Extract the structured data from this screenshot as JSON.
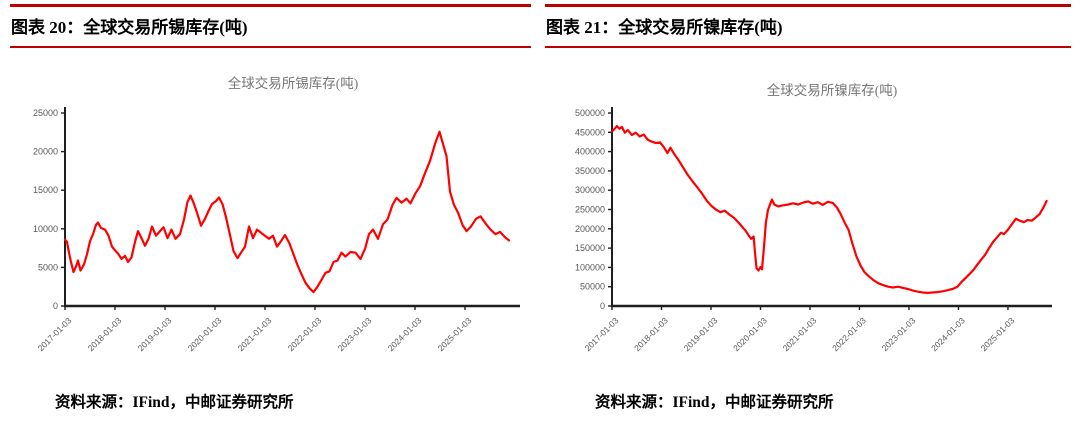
{
  "style": {
    "accent_rule_color": "#c00000",
    "series_line_color": "#ff0000",
    "axis_color": "#1f1f1f",
    "tick_label_color": "#595959",
    "chart_title_color": "#767676"
  },
  "figures": [
    {
      "header_label": "图表 20：全球交易所锡库存(吨)",
      "source_text": "资料来源：IFind，中邮证券研究所"
    },
    {
      "header_label": "图表 21：全球交易所镍库存(吨)",
      "source_text": "资料来源：IFind，中邮证券研究所"
    }
  ],
  "chart_data": [
    {
      "type": "line",
      "title": "全球交易所锡库存(吨)",
      "xlabel": "",
      "ylabel": "",
      "grid": false,
      "legend": "none",
      "xlim": [
        2017.0,
        2026.1
      ],
      "ylim": [
        0,
        25000
      ],
      "yticks": [
        0,
        5000,
        10000,
        15000,
        20000,
        25000
      ],
      "ytick_labels": [
        "0",
        "5000",
        "10000",
        "15000",
        "20000",
        "25000"
      ],
      "xticks": {
        "values": [
          2017,
          2018,
          2019,
          2020,
          2021,
          2022,
          2023,
          2024,
          2025
        ],
        "labels": [
          "2017-01-03",
          "2018-01-03",
          "2019-01-03",
          "2020-01-03",
          "2021-01-03",
          "2022-01-03",
          "2023-01-03",
          "2024-01-03",
          "2025-01-03"
        ]
      },
      "series": [
        {
          "name": "全球交易所锡库存",
          "color": "#ff0000",
          "points": [
            [
              2017.0,
              8600
            ],
            [
              2017.04,
              8300
            ],
            [
              2017.08,
              6900
            ],
            [
              2017.12,
              5700
            ],
            [
              2017.17,
              4400
            ],
            [
              2017.22,
              5100
            ],
            [
              2017.26,
              5900
            ],
            [
              2017.31,
              4600
            ],
            [
              2017.38,
              5400
            ],
            [
              2017.44,
              6700
            ],
            [
              2017.5,
              8400
            ],
            [
              2017.56,
              9300
            ],
            [
              2017.62,
              10500
            ],
            [
              2017.66,
              10800
            ],
            [
              2017.72,
              10100
            ],
            [
              2017.8,
              9900
            ],
            [
              2017.87,
              9100
            ],
            [
              2017.94,
              7700
            ],
            [
              2018.0,
              7200
            ],
            [
              2018.06,
              6800
            ],
            [
              2018.13,
              6100
            ],
            [
              2018.2,
              6500
            ],
            [
              2018.26,
              5700
            ],
            [
              2018.33,
              6300
            ],
            [
              2018.4,
              8300
            ],
            [
              2018.46,
              9700
            ],
            [
              2018.53,
              8800
            ],
            [
              2018.6,
              7800
            ],
            [
              2018.67,
              8700
            ],
            [
              2018.74,
              10300
            ],
            [
              2018.82,
              9100
            ],
            [
              2018.9,
              9700
            ],
            [
              2018.97,
              10200
            ],
            [
              2019.05,
              8800
            ],
            [
              2019.13,
              9900
            ],
            [
              2019.21,
              8700
            ],
            [
              2019.3,
              9300
            ],
            [
              2019.38,
              11200
            ],
            [
              2019.45,
              13500
            ],
            [
              2019.51,
              14300
            ],
            [
              2019.57,
              13400
            ],
            [
              2019.64,
              12100
            ],
            [
              2019.72,
              10400
            ],
            [
              2019.8,
              11300
            ],
            [
              2019.87,
              12300
            ],
            [
              2019.94,
              13200
            ],
            [
              2020.02,
              13600
            ],
            [
              2020.08,
              14050
            ],
            [
              2020.15,
              13200
            ],
            [
              2020.22,
              11500
            ],
            [
              2020.3,
              9200
            ],
            [
              2020.37,
              7100
            ],
            [
              2020.45,
              6200
            ],
            [
              2020.52,
              6900
            ],
            [
              2020.6,
              7700
            ],
            [
              2020.68,
              10300
            ],
            [
              2020.76,
              8800
            ],
            [
              2020.84,
              9900
            ],
            [
              2020.92,
              9500
            ],
            [
              2021.0,
              9100
            ],
            [
              2021.08,
              8700
            ],
            [
              2021.16,
              9100
            ],
            [
              2021.24,
              7700
            ],
            [
              2021.32,
              8400
            ],
            [
              2021.4,
              9200
            ],
            [
              2021.49,
              8100
            ],
            [
              2021.57,
              6700
            ],
            [
              2021.65,
              5300
            ],
            [
              2021.73,
              4100
            ],
            [
              2021.81,
              3000
            ],
            [
              2021.89,
              2300
            ],
            [
              2021.97,
              1800
            ],
            [
              2022.05,
              2500
            ],
            [
              2022.13,
              3400
            ],
            [
              2022.21,
              4300
            ],
            [
              2022.29,
              4500
            ],
            [
              2022.37,
              5700
            ],
            [
              2022.45,
              5900
            ],
            [
              2022.53,
              6900
            ],
            [
              2022.61,
              6400
            ],
            [
              2022.71,
              7000
            ],
            [
              2022.81,
              6900
            ],
            [
              2022.91,
              6100
            ],
            [
              2023.0,
              7400
            ],
            [
              2023.08,
              9300
            ],
            [
              2023.16,
              9900
            ],
            [
              2023.26,
              8700
            ],
            [
              2023.36,
              10600
            ],
            [
              2023.45,
              11200
            ],
            [
              2023.55,
              13100
            ],
            [
              2023.63,
              14000
            ],
            [
              2023.73,
              13400
            ],
            [
              2023.83,
              13900
            ],
            [
              2023.91,
              13300
            ],
            [
              2024.01,
              14600
            ],
            [
              2024.1,
              15500
            ],
            [
              2024.2,
              17200
            ],
            [
              2024.3,
              18800
            ],
            [
              2024.4,
              21000
            ],
            [
              2024.49,
              22560
            ],
            [
              2024.56,
              21000
            ],
            [
              2024.63,
              19400
            ],
            [
              2024.7,
              14800
            ],
            [
              2024.78,
              13100
            ],
            [
              2024.86,
              12100
            ],
            [
              2024.95,
              10500
            ],
            [
              2025.03,
              9700
            ],
            [
              2025.12,
              10300
            ],
            [
              2025.22,
              11300
            ],
            [
              2025.31,
              11600
            ],
            [
              2025.41,
              10700
            ],
            [
              2025.51,
              9900
            ],
            [
              2025.61,
              9300
            ],
            [
              2025.7,
              9600
            ],
            [
              2025.8,
              8900
            ],
            [
              2025.88,
              8500
            ]
          ]
        }
      ]
    },
    {
      "type": "line",
      "title": "全球交易所镍库存(吨)",
      "xlabel": "",
      "ylabel": "",
      "grid": false,
      "legend": "none",
      "xlim": [
        2017.0,
        2025.89
      ],
      "ylim": [
        0,
        500000
      ],
      "yticks": [
        0,
        50000,
        100000,
        150000,
        200000,
        250000,
        300000,
        350000,
        400000,
        450000,
        500000
      ],
      "ytick_labels": [
        "0",
        "50000",
        "100000",
        "150000",
        "200000",
        "250000",
        "300000",
        "350000",
        "400000",
        "450000",
        "500000"
      ],
      "xticks": {
        "values": [
          2017,
          2018,
          2019,
          2020,
          2021,
          2022,
          2023,
          2024,
          2025
        ],
        "labels": [
          "2017-01-03",
          "2018-01-03",
          "2019-01-03",
          "2020-01-03",
          "2021-01-03",
          "2022-01-03",
          "2023-01-03",
          "2024-01-03",
          "2025-01-03"
        ]
      },
      "series": [
        {
          "name": "全球交易所镍库存",
          "color": "#ff0000",
          "points": [
            [
              2017.0,
              452000
            ],
            [
              2017.06,
              460000
            ],
            [
              2017.1,
              466000
            ],
            [
              2017.15,
              459000
            ],
            [
              2017.2,
              464000
            ],
            [
              2017.26,
              449000
            ],
            [
              2017.32,
              456000
            ],
            [
              2017.4,
              443000
            ],
            [
              2017.48,
              449000
            ],
            [
              2017.56,
              439000
            ],
            [
              2017.64,
              444000
            ],
            [
              2017.72,
              431000
            ],
            [
              2017.8,
              426000
            ],
            [
              2017.89,
              422000
            ],
            [
              2017.97,
              424000
            ],
            [
              2018.05,
              411000
            ],
            [
              2018.12,
              396000
            ],
            [
              2018.18,
              410000
            ],
            [
              2018.26,
              393000
            ],
            [
              2018.35,
              377000
            ],
            [
              2018.44,
              358000
            ],
            [
              2018.53,
              340000
            ],
            [
              2018.62,
              324000
            ],
            [
              2018.72,
              308000
            ],
            [
              2018.82,
              291000
            ],
            [
              2018.92,
              272000
            ],
            [
              2019.01,
              259000
            ],
            [
              2019.1,
              250000
            ],
            [
              2019.19,
              243000
            ],
            [
              2019.28,
              247000
            ],
            [
              2019.37,
              237000
            ],
            [
              2019.46,
              229000
            ],
            [
              2019.55,
              217000
            ],
            [
              2019.63,
              205000
            ],
            [
              2019.7,
              195000
            ],
            [
              2019.76,
              183000
            ],
            [
              2019.81,
              174000
            ],
            [
              2019.86,
              180000
            ],
            [
              2019.89,
              139000
            ],
            [
              2019.92,
              98000
            ],
            [
              2019.96,
              92000
            ],
            [
              2020.0,
              101000
            ],
            [
              2020.03,
              95000
            ],
            [
              2020.07,
              150000
            ],
            [
              2020.11,
              216000
            ],
            [
              2020.15,
              248000
            ],
            [
              2020.19,
              262000
            ],
            [
              2020.23,
              276000
            ],
            [
              2020.28,
              263000
            ],
            [
              2020.36,
              258000
            ],
            [
              2020.46,
              261000
            ],
            [
              2020.56,
              263000
            ],
            [
              2020.66,
              266000
            ],
            [
              2020.76,
              263000
            ],
            [
              2020.86,
              268000
            ],
            [
              2020.96,
              271000
            ],
            [
              2021.06,
              265000
            ],
            [
              2021.16,
              269000
            ],
            [
              2021.26,
              262000
            ],
            [
              2021.36,
              270000
            ],
            [
              2021.46,
              267000
            ],
            [
              2021.54,
              256000
            ],
            [
              2021.62,
              238000
            ],
            [
              2021.7,
              216000
            ],
            [
              2021.78,
              197000
            ],
            [
              2021.86,
              161000
            ],
            [
              2021.94,
              128000
            ],
            [
              2022.02,
              105000
            ],
            [
              2022.1,
              88000
            ],
            [
              2022.18,
              78000
            ],
            [
              2022.28,
              67000
            ],
            [
              2022.38,
              59000
            ],
            [
              2022.48,
              54000
            ],
            [
              2022.58,
              50000
            ],
            [
              2022.68,
              48000
            ],
            [
              2022.78,
              50000
            ],
            [
              2022.88,
              47000
            ],
            [
              2022.98,
              44000
            ],
            [
              2023.08,
              40000
            ],
            [
              2023.18,
              37000
            ],
            [
              2023.28,
              35000
            ],
            [
              2023.38,
              34000
            ],
            [
              2023.48,
              35000
            ],
            [
              2023.58,
              36000
            ],
            [
              2023.68,
              38000
            ],
            [
              2023.78,
              41000
            ],
            [
              2023.88,
              44000
            ],
            [
              2023.98,
              50000
            ],
            [
              2024.06,
              62000
            ],
            [
              2024.14,
              72000
            ],
            [
              2024.22,
              82000
            ],
            [
              2024.3,
              93000
            ],
            [
              2024.38,
              107000
            ],
            [
              2024.46,
              120000
            ],
            [
              2024.54,
              133000
            ],
            [
              2024.62,
              150000
            ],
            [
              2024.7,
              166000
            ],
            [
              2024.78,
              178000
            ],
            [
              2024.86,
              190000
            ],
            [
              2024.92,
              186000
            ],
            [
              2025.0,
              198000
            ],
            [
              2025.08,
              212000
            ],
            [
              2025.16,
              226000
            ],
            [
              2025.24,
              221000
            ],
            [
              2025.32,
              217000
            ],
            [
              2025.4,
              223000
            ],
            [
              2025.48,
              221000
            ],
            [
              2025.56,
              229000
            ],
            [
              2025.64,
              238000
            ],
            [
              2025.72,
              256000
            ],
            [
              2025.78,
              272000
            ]
          ]
        }
      ]
    }
  ]
}
